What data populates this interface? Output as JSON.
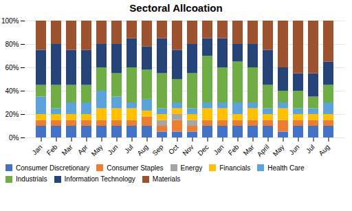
{
  "chart_data": {
    "type": "bar",
    "title": "Sectoral Allcoation",
    "categories": [
      "Jan",
      "Feb",
      "Mar",
      "Apr",
      "May",
      "Jun",
      "Jul",
      "Aug",
      "Sep",
      "Oct",
      "Nov",
      "Dec",
      "Jan",
      "Feb",
      "Mar",
      "April",
      "May",
      "Jun",
      "Jul",
      "Aug"
    ],
    "series": [
      {
        "name": "Consumer Discretionary",
        "color": "#4472C4",
        "values": [
          0.1,
          0.1,
          0.1,
          0.1,
          0.1,
          0.1,
          0.1,
          0.1,
          0.05,
          0.05,
          0.05,
          0.1,
          0.1,
          0.1,
          0.1,
          0.1,
          0.05,
          0.1,
          0.1,
          0.1
        ]
      },
      {
        "name": "Consumer Staples",
        "color": "#ED7D31",
        "values": [
          0.05,
          0.05,
          0.05,
          0.05,
          0.05,
          0.05,
          0.05,
          0.08,
          0.05,
          0.1,
          0.05,
          0.05,
          0.05,
          0.05,
          0.05,
          0.05,
          0.1,
          0.05,
          0.05,
          0.05
        ]
      },
      {
        "name": "Energy",
        "color": "#A5A5A5",
        "values": [
          0,
          0,
          0,
          0,
          0,
          0,
          0,
          0,
          0.05,
          0.05,
          0.05,
          0,
          0,
          0,
          0,
          0,
          0,
          0,
          0,
          0
        ]
      },
      {
        "name": "Financials",
        "color": "#FFC000",
        "values": [
          0.05,
          0.05,
          0.05,
          0.05,
          0.1,
          0.1,
          0.1,
          0.05,
          0.05,
          0.05,
          0.05,
          0.1,
          0.1,
          0.05,
          0.1,
          0.05,
          0.1,
          0.05,
          0.05,
          0.05
        ]
      },
      {
        "name": "Health Care",
        "color": "#5BA3D9",
        "values": [
          0.15,
          0.05,
          0.1,
          0.1,
          0.15,
          0.1,
          0.05,
          0.1,
          0.05,
          0.05,
          0.05,
          0.05,
          0.05,
          0.1,
          0.05,
          0.05,
          0.05,
          0.05,
          0.05,
          0.1
        ]
      },
      {
        "name": "Industrials",
        "color": "#70AD47",
        "values": [
          0.1,
          0.2,
          0.15,
          0.15,
          0.2,
          0.2,
          0.3,
          0.25,
          0.3,
          0.2,
          0.3,
          0.4,
          0.3,
          0.35,
          0.3,
          0.2,
          0.1,
          0.15,
          0.1,
          0.15
        ]
      },
      {
        "name": "Information Technology",
        "color": "#264478",
        "values": [
          0.3,
          0.35,
          0.3,
          0.3,
          0.2,
          0.25,
          0.25,
          0.2,
          0.3,
          0.25,
          0.25,
          0.15,
          0.25,
          0.15,
          0.2,
          0.3,
          0.2,
          0.15,
          0.2,
          0.2
        ]
      },
      {
        "name": "Materials",
        "color": "#9E5330",
        "values": [
          0.25,
          0.2,
          0.25,
          0.25,
          0.2,
          0.2,
          0.15,
          0.22,
          0.15,
          0.25,
          0.2,
          0.15,
          0.15,
          0.2,
          0.2,
          0.25,
          0.4,
          0.45,
          0.45,
          0.35
        ]
      }
    ],
    "stacked": true,
    "ylim": [
      0,
      1.0
    ],
    "yticks": [
      {
        "value": 0,
        "label": "0%"
      },
      {
        "value": 0.2,
        "label": "20%"
      },
      {
        "value": 0.4,
        "label": "40%"
      },
      {
        "value": 0.6,
        "label": "60%"
      },
      {
        "value": 0.8,
        "label": "80%"
      },
      {
        "value": 1.0,
        "label": "100%"
      }
    ],
    "grid": true,
    "legend": "bottom"
  }
}
